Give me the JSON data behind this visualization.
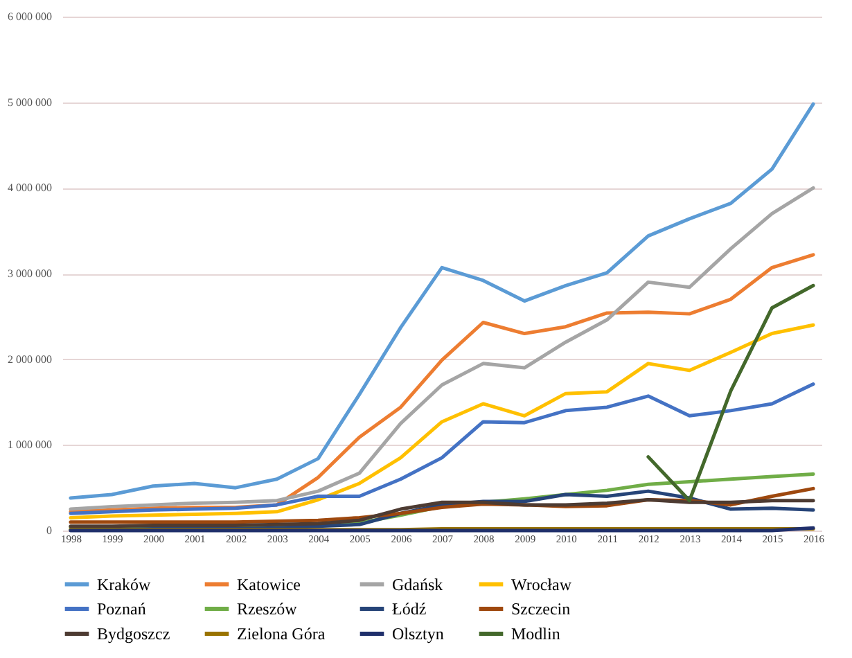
{
  "chart_data": {
    "type": "line",
    "categories": [
      "1998",
      "1999",
      "2000",
      "2001",
      "2002",
      "2003",
      "2004",
      "2005",
      "2006",
      "2007",
      "2008",
      "2009",
      "2010",
      "2011",
      "2012",
      "2013",
      "2014",
      "2015",
      "2016"
    ],
    "series": [
      {
        "name": "Kraków",
        "color": "#5b9bd5",
        "values": [
          380000,
          420000,
          520000,
          550000,
          500000,
          600000,
          840000,
          1590000,
          2370000,
          3070000,
          2920000,
          2680000,
          2860000,
          3010000,
          3440000,
          3640000,
          3820000,
          4220000,
          4980000
        ]
      },
      {
        "name": "Katowice",
        "color": "#ed7d31",
        "values": [
          220000,
          240000,
          260000,
          270000,
          270000,
          300000,
          620000,
          1090000,
          1440000,
          1990000,
          2430000,
          2300000,
          2380000,
          2540000,
          2550000,
          2530000,
          2700000,
          3070000,
          3220000
        ]
      },
      {
        "name": "Gdańsk",
        "color": "#a5a5a5",
        "values": [
          250000,
          280000,
          300000,
          320000,
          330000,
          350000,
          460000,
          670000,
          1250000,
          1700000,
          1950000,
          1900000,
          2200000,
          2460000,
          2900000,
          2840000,
          3290000,
          3700000,
          4000000
        ]
      },
      {
        "name": "Wrocław",
        "color": "#ffc000",
        "values": [
          150000,
          170000,
          180000,
          190000,
          200000,
          220000,
          360000,
          550000,
          850000,
          1270000,
          1480000,
          1340000,
          1600000,
          1620000,
          1950000,
          1870000,
          2080000,
          2300000,
          2400000
        ]
      },
      {
        "name": "Poznań",
        "color": "#4472c4",
        "values": [
          200000,
          220000,
          240000,
          250000,
          260000,
          300000,
          400000,
          400000,
          600000,
          850000,
          1270000,
          1260000,
          1400000,
          1440000,
          1570000,
          1340000,
          1400000,
          1480000,
          1710000
        ]
      },
      {
        "name": "Rzeszów",
        "color": "#70ad47",
        "values": [
          40000,
          40000,
          50000,
          50000,
          50000,
          60000,
          70000,
          90000,
          180000,
          280000,
          330000,
          370000,
          420000,
          470000,
          540000,
          570000,
          600000,
          630000,
          660000
        ]
      },
      {
        "name": "Łódź",
        "color": "#264478",
        "values": [
          10000,
          10000,
          20000,
          20000,
          20000,
          30000,
          50000,
          70000,
          200000,
          300000,
          340000,
          340000,
          420000,
          400000,
          460000,
          380000,
          250000,
          260000,
          240000
        ]
      },
      {
        "name": "Szczecin",
        "color": "#9e480e",
        "values": [
          100000,
          100000,
          100000,
          100000,
          100000,
          110000,
          120000,
          150000,
          200000,
          270000,
          310000,
          300000,
          280000,
          290000,
          360000,
          350000,
          300000,
          400000,
          490000
        ]
      },
      {
        "name": "Bydgoszcz",
        "color": "#4d3b32",
        "values": [
          50000,
          50000,
          60000,
          60000,
          60000,
          70000,
          80000,
          120000,
          250000,
          330000,
          330000,
          300000,
          300000,
          320000,
          360000,
          330000,
          330000,
          350000,
          350000
        ]
      },
      {
        "name": "Zielona Góra",
        "color": "#997300",
        "values": [
          10000,
          10000,
          10000,
          10000,
          10000,
          10000,
          10000,
          10000,
          10000,
          20000,
          20000,
          20000,
          20000,
          20000,
          20000,
          20000,
          20000,
          20000,
          20000
        ]
      },
      {
        "name": "Olsztyn",
        "color": "#1f2f6b",
        "values": [
          0,
          0,
          0,
          0,
          0,
          0,
          0,
          0,
          0,
          0,
          0,
          0,
          0,
          0,
          0,
          0,
          0,
          0,
          30000
        ]
      },
      {
        "name": "Modlin",
        "color": "#43682b",
        "values": [
          null,
          null,
          null,
          null,
          null,
          null,
          null,
          null,
          null,
          null,
          null,
          null,
          null,
          null,
          860000,
          350000,
          1630000,
          2600000,
          2860000
        ]
      }
    ],
    "ylim": [
      0,
      6000000
    ],
    "yticks": [
      0,
      {
        "value": 1000000,
        "label": "1 000 000"
      },
      {
        "value": 2000000,
        "label": "2 000 000"
      },
      {
        "value": 3000000,
        "label": "3 000 000"
      },
      {
        "value": 4000000,
        "label": "4 000 000"
      },
      {
        "value": 5000000,
        "label": "5 000 000"
      },
      {
        "value": 6000000,
        "label": "6 000 000"
      }
    ],
    "grid": "y",
    "legend": "bottom"
  }
}
